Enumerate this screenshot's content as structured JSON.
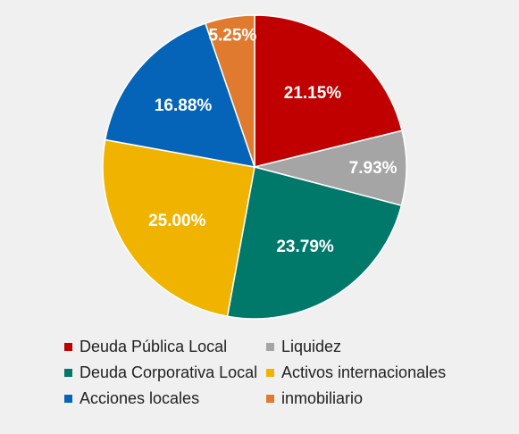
{
  "chart_data": {
    "type": "pie",
    "title": "",
    "categories": [
      "Deuda Pública Local",
      "Liquidez",
      "Deuda Corporativa Local",
      "Activos internacionales",
      "Acciones locales",
      "inmobiliario"
    ],
    "values": [
      21.15,
      7.93,
      23.79,
      25.0,
      16.88,
      5.25
    ],
    "data_labels": [
      "21.15%",
      "7.93%",
      "23.79%",
      "25.00%",
      "16.88%",
      "5.25%"
    ],
    "colors": [
      "#c00000",
      "#a5a5a5",
      "#00786a",
      "#f0b400",
      "#0563b8",
      "#e07a2e"
    ],
    "legend_order": [
      0,
      1,
      2,
      3,
      4,
      5
    ],
    "legend_placement": "bottom",
    "start": "top-clockwise"
  }
}
